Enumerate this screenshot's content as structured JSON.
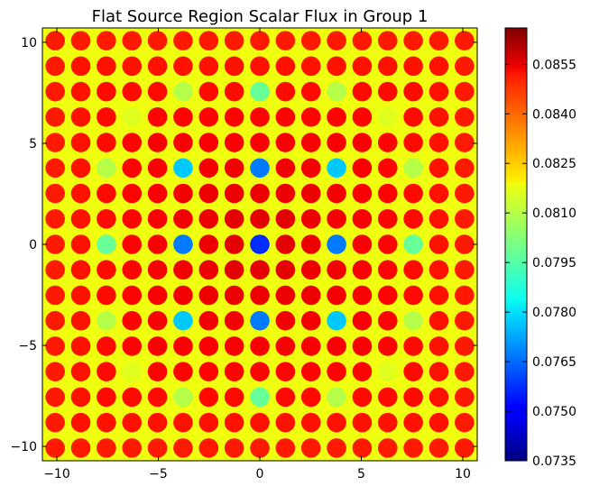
{
  "chart_data": {
    "type": "heatmap",
    "title": "Flat Source Region Scalar Flux in Group 1",
    "xlabel": "",
    "ylabel": "",
    "xlim": [
      -10.71,
      10.71
    ],
    "ylim": [
      -10.71,
      10.71
    ],
    "x_ticks": [
      -10,
      -5,
      0,
      5,
      10
    ],
    "x_tick_labels": [
      "−10",
      "−5",
      "0",
      "5",
      "10"
    ],
    "y_ticks": [
      -10,
      -5,
      0,
      5,
      10
    ],
    "y_tick_labels": [
      "−10",
      "−5",
      "0",
      "5",
      "10"
    ],
    "grid": false,
    "colormap": "jet",
    "colorbar": {
      "vmin": 0.0735,
      "vmax": 0.0866,
      "ticks": [
        0.0735,
        0.075,
        0.0765,
        0.078,
        0.0795,
        0.081,
        0.0825,
        0.084,
        0.0855
      ],
      "tick_labels": [
        "0.0735",
        "0.0750",
        "0.0765",
        "0.0780",
        "0.0795",
        "0.0810",
        "0.0825",
        "0.0840",
        "0.0855"
      ]
    },
    "lattice": {
      "pin_pitch": 1.26,
      "pins_per_side": 17,
      "center_fuel_value": 0.0854,
      "edge_fuel_value": 0.0846,
      "guide_tube_value": 0.0838,
      "center_guide_tube_value": 0.0757,
      "moderator_value": 0.0815,
      "water_gap_value": 0.0795,
      "guide_tubes": [
        [
          2,
          5
        ],
        [
          2,
          8
        ],
        [
          2,
          11
        ],
        [
          3,
          3
        ],
        [
          3,
          13
        ],
        [
          5,
          2
        ],
        [
          5,
          5
        ],
        [
          5,
          8
        ],
        [
          5,
          11
        ],
        [
          5,
          14
        ],
        [
          8,
          2
        ],
        [
          8,
          5
        ],
        [
          8,
          8
        ],
        [
          8,
          11
        ],
        [
          8,
          14
        ],
        [
          11,
          2
        ],
        [
          11,
          5
        ],
        [
          11,
          8
        ],
        [
          11,
          11
        ],
        [
          11,
          14
        ],
        [
          13,
          3
        ],
        [
          13,
          13
        ],
        [
          14,
          5
        ],
        [
          14,
          8
        ],
        [
          14,
          11
        ]
      ]
    }
  }
}
